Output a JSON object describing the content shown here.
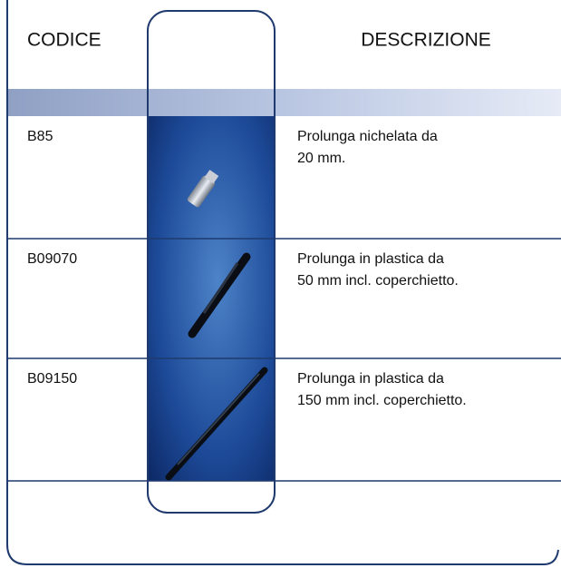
{
  "header": {
    "code_label": "CODICE",
    "description_label": "DESCRIZIONE"
  },
  "rows": [
    {
      "code": "B85",
      "description": [
        "Prolunga nichelata da",
        "20 mm."
      ]
    },
    {
      "code": "B09070",
      "description": [
        "Prolunga in plastica da",
        "50 mm incl. coperchietto."
      ]
    },
    {
      "code": "B09150",
      "description": [
        "Prolunga in plastica da",
        "150 mm incl. coperchietto."
      ]
    }
  ]
}
